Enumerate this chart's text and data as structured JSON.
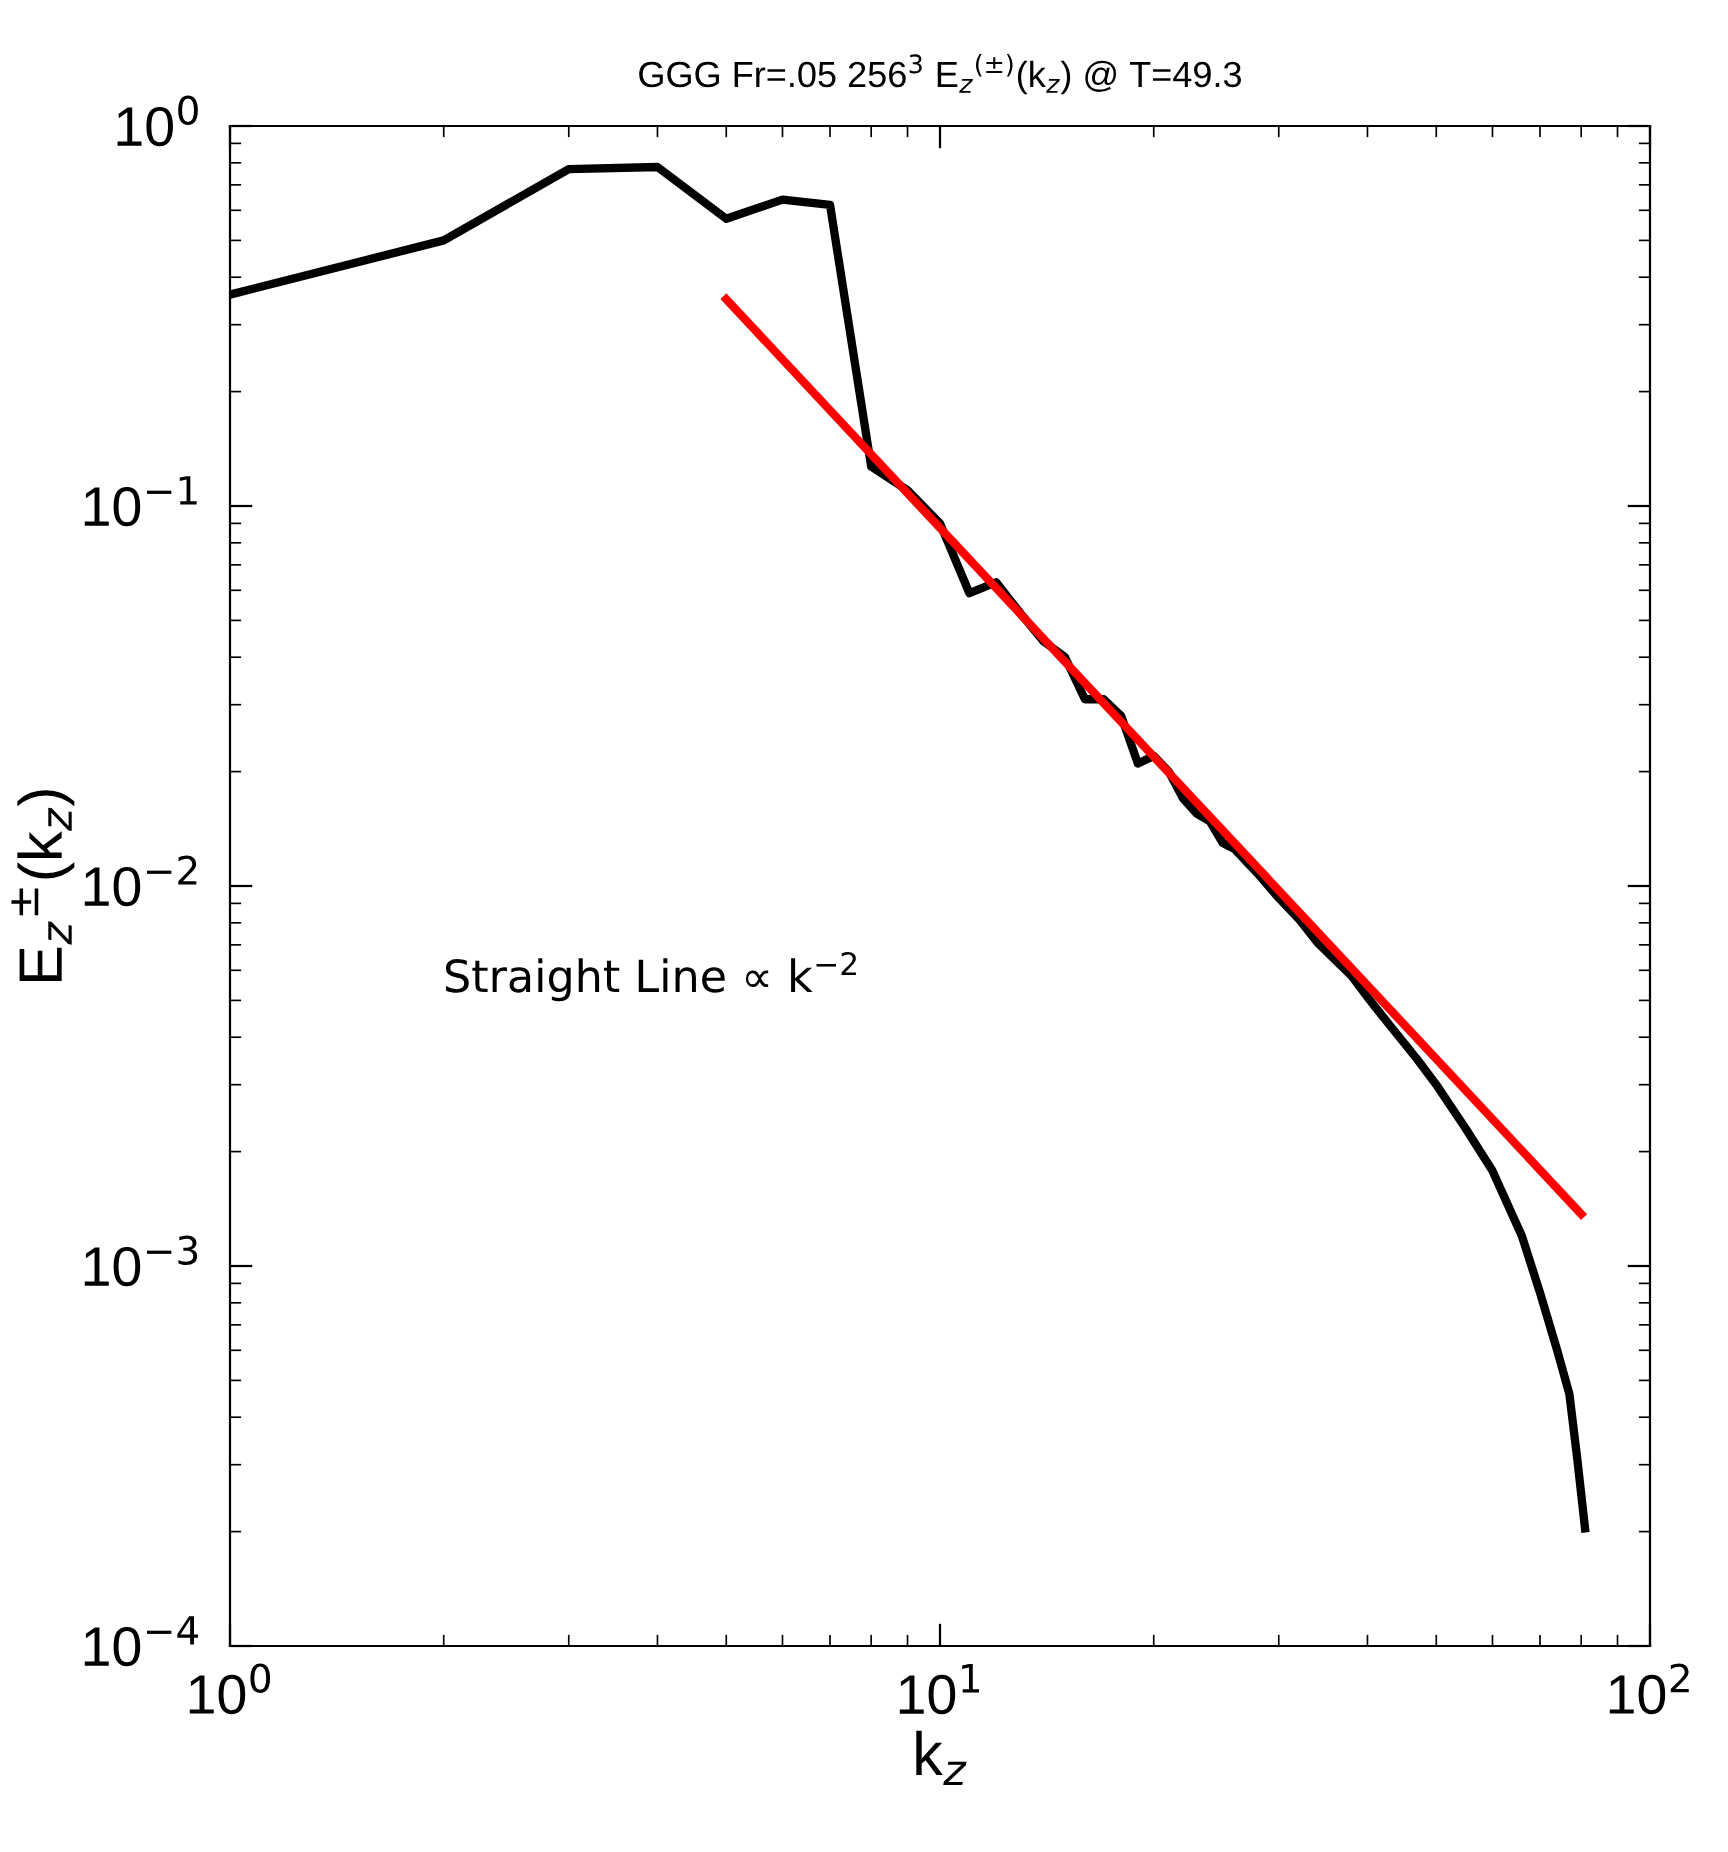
{
  "chart_data": {
    "type": "line",
    "title": "GGG Fr=.05 256$^{3}$ E$_{z}$$^{(±)}$(k$_{z}$) @ T=49.3",
    "xlabel": "k$_{z}$",
    "ylabel": "E$_{z}$$^{±}$(k$_{z}$)",
    "log": "xy",
    "grid": false,
    "line_style": "solid",
    "marker": "none",
    "xlim": [
      1,
      100
    ],
    "ylim": [
      0.0001,
      1
    ],
    "xticks": [
      {
        "value": 1,
        "label": "10$^{0}$"
      },
      {
        "value": 10,
        "label": "10$^{1}$"
      },
      {
        "value": 100,
        "label": "10$^{2}$"
      }
    ],
    "yticks": [
      {
        "value": 0.0001,
        "label": "10$^{−4}$"
      },
      {
        "value": 0.001,
        "label": "10$^{−3}$"
      },
      {
        "value": 0.01,
        "label": "10$^{−2}$"
      },
      {
        "value": 0.1,
        "label": "10$^{−1}$"
      },
      {
        "value": 1,
        "label": "10$^{0}$"
      }
    ],
    "annotations": [
      "Straight Line ∝ k$^{−2}$"
    ],
    "series": [
      {
        "color": "#000000",
        "x": [
          1,
          2,
          3,
          4,
          5,
          6,
          7,
          8,
          9,
          10,
          11,
          12,
          13,
          14,
          15,
          16,
          17,
          18,
          19,
          20,
          21,
          22,
          23,
          24,
          25,
          26,
          28,
          30,
          32,
          34,
          36,
          38,
          40,
          43,
          47,
          50,
          55,
          60,
          66,
          70,
          74,
          77,
          79,
          81
        ],
        "values": [
          0.36,
          0.5,
          0.77,
          0.78,
          0.57,
          0.64,
          0.62,
          0.127,
          0.11,
          0.09,
          0.059,
          0.063,
          0.052,
          0.044,
          0.04,
          0.031,
          0.031,
          0.028,
          0.021,
          0.022,
          0.02,
          0.017,
          0.0155,
          0.0148,
          0.013,
          0.0125,
          0.0108,
          0.0093,
          0.0082,
          0.0071,
          0.0064,
          0.0058,
          0.0051,
          0.0043,
          0.0035,
          0.003,
          0.0023,
          0.00178,
          0.0012,
          0.00085,
          0.0006,
          0.00046,
          0.00031,
          0.000204
        ]
      },
      {
        "color": "#ff0000",
        "x": [
          5,
          80
        ],
        "values": [
          0.35,
          0.00137
        ]
      }
    ]
  }
}
